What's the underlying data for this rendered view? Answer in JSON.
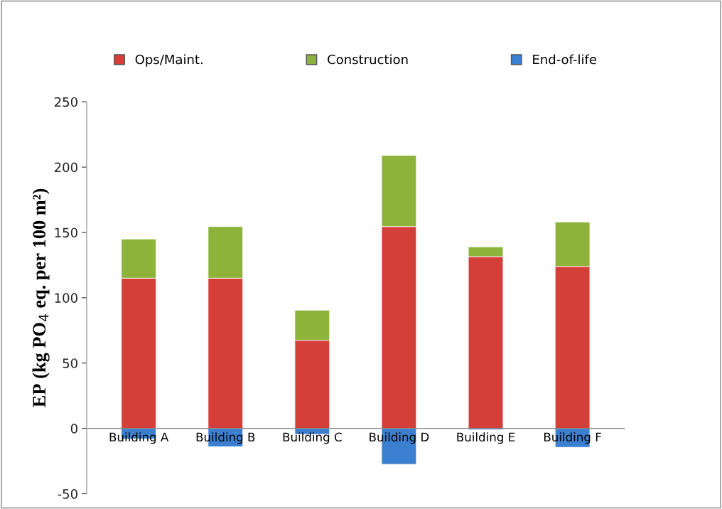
{
  "chart_data": {
    "type": "bar",
    "stacked": true,
    "ylabel": "EP (kg PO$_{4}$ eq. per 100 m²)",
    "categories": [
      "Building A",
      "Building B",
      "Building C",
      "Building D",
      "Building E",
      "Building F"
    ],
    "series": [
      {
        "name": "Ops/Maint.",
        "color": "#d43f3a",
        "values": [
          115,
          115,
          67.5,
          154.5,
          131.5,
          124
        ]
      },
      {
        "name": "Construction",
        "color": "#8db33a",
        "values": [
          30,
          39.5,
          23,
          54.5,
          7.5,
          34
        ]
      },
      {
        "name": "End-of-life",
        "color": "#3a7fd0",
        "values": [
          -8,
          -14,
          -4.5,
          -27.5,
          -1,
          -14.5
        ]
      }
    ],
    "ylim": [
      -50,
      250
    ],
    "yticks": [
      -50,
      0,
      50,
      100,
      150,
      200,
      250
    ],
    "grid": false,
    "legend": "top"
  }
}
